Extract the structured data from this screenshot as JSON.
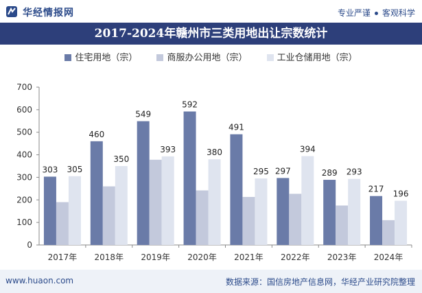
{
  "header": {
    "brand": "华经情报网",
    "tagline_left": "专业严谨",
    "tagline_right": "客观科学"
  },
  "colors": {
    "series1": "#6a7ba8",
    "series2": "#c3c9dc",
    "series3": "#dfe4ef",
    "title_bg": "#2d3f7a"
  },
  "chart_data": {
    "type": "bar",
    "title": "2017-2024年赣州市三类用地出让宗数统计",
    "categories": [
      "2017年",
      "2018年",
      "2019年",
      "2020年",
      "2021年",
      "2022年",
      "2023年",
      "2024年"
    ],
    "series": [
      {
        "name": "住宅用地（宗）",
        "values": [
          303,
          460,
          549,
          592,
          491,
          297,
          289,
          217
        ],
        "labeled": true
      },
      {
        "name": "商服办公用地（宗）",
        "values": [
          190,
          260,
          378,
          242,
          213,
          227,
          175,
          110
        ],
        "labeled": false
      },
      {
        "name": "工业仓储用地（宗）",
        "values": [
          305,
          350,
          393,
          380,
          295,
          394,
          293,
          196
        ],
        "labeled": true
      }
    ],
    "ylim": [
      0,
      700
    ],
    "yticks": [
      0,
      100,
      200,
      300,
      400,
      500,
      600,
      700
    ],
    "xlabel": "",
    "ylabel": "",
    "legend": "top"
  },
  "footer": {
    "url": "www.huaon.com",
    "source": "数据来源：国信房地产信息网，华经产业研究院整理"
  }
}
